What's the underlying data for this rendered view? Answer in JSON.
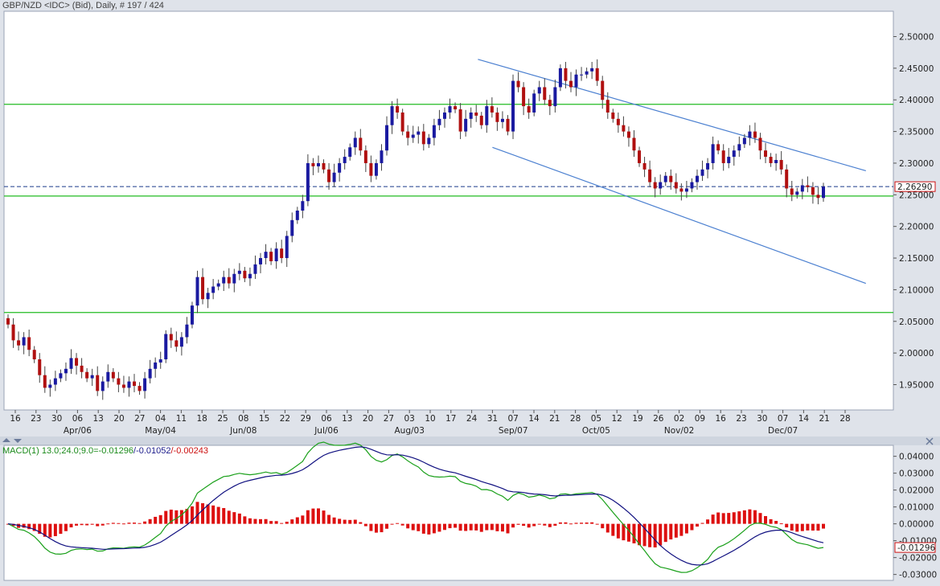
{
  "header": {
    "title": "GBP/NZD <IDC> (Bid), Daily, # 197 / 424"
  },
  "macd_panel": {
    "label_prefix": "MACD(1) 13.0;24.0;9.0=",
    "macd_value": "-0.01296",
    "signal_value": "/-0.01052",
    "hist_value": "/-0.00243"
  },
  "colors": {
    "up_candle": "#1a1aa0",
    "down_candle": "#b01010",
    "support_line": "#22bb22",
    "channel_line": "#4a7fd0",
    "macd_line": "#1aa01a",
    "signal_line": "#101080",
    "histogram": "#dd1010",
    "price_marker": "#cc1010"
  },
  "chart_data": [
    {
      "type": "candlestick",
      "title": "GBP/NZD <IDC> (Bid), Daily, # 197 / 424",
      "ylim": [
        1.91,
        2.54
      ],
      "y_ticks": [
        "2.50000",
        "2.45000",
        "2.40000",
        "2.35000",
        "2.30000",
        "2.25000",
        "2.20000",
        "2.15000",
        "2.10000",
        "2.05000",
        "2.00000",
        "1.95000"
      ],
      "y_tick_values": [
        2.5,
        2.45,
        2.4,
        2.35,
        2.3,
        2.25,
        2.2,
        2.15,
        2.1,
        2.05,
        2.0,
        1.95
      ],
      "x_tick_labels": [
        "16",
        "23",
        "30",
        "06",
        "13",
        "20",
        "27",
        "04",
        "11",
        "18",
        "25",
        "08",
        "15",
        "22",
        "29",
        "06",
        "13",
        "20",
        "27",
        "03",
        "10",
        "17",
        "24",
        "31",
        "07",
        "14",
        "21",
        "28",
        "05",
        "12",
        "19",
        "26",
        "02",
        "09",
        "16",
        "23",
        "30",
        "07",
        "14",
        "21",
        "28"
      ],
      "month_labels": [
        {
          "label": "Apr/06",
          "x_tick": 3
        },
        {
          "label": "May/04",
          "x_tick": 7
        },
        {
          "label": "Jun/08",
          "x_tick": 11
        },
        {
          "label": "Jul/06",
          "x_tick": 15
        },
        {
          "label": "Aug/03",
          "x_tick": 19
        },
        {
          "label": "Sep/07",
          "x_tick": 24
        },
        {
          "label": "Oct/05",
          "x_tick": 28
        },
        {
          "label": "Nov/02",
          "x_tick": 32
        },
        {
          "label": "Dec/07",
          "x_tick": 37
        }
      ],
      "current_price": "2.26290",
      "current_price_value": 2.2629,
      "horizontal_levels": [
        2.393,
        2.248,
        2.064
      ],
      "trend_lines": [
        {
          "from": [
            22.3,
            2.464
          ],
          "to": [
            41,
            2.288
          ]
        },
        {
          "from": [
            23,
            2.325
          ],
          "to": [
            41,
            2.11
          ]
        }
      ],
      "closes": [
        2.045,
        2.02,
        2.012,
        2.025,
        2.005,
        1.99,
        1.965,
        1.945,
        1.95,
        1.96,
        1.968,
        1.975,
        1.992,
        1.98,
        1.97,
        1.96,
        1.965,
        1.94,
        1.955,
        1.97,
        1.96,
        1.95,
        1.945,
        1.955,
        1.948,
        1.94,
        1.96,
        1.975,
        1.985,
        1.99,
        2.03,
        2.02,
        2.01,
        2.025,
        2.045,
        2.075,
        2.12,
        2.085,
        2.095,
        2.105,
        2.11,
        2.12,
        2.11,
        2.125,
        2.13,
        2.118,
        2.125,
        2.14,
        2.15,
        2.16,
        2.145,
        2.165,
        2.15,
        2.185,
        2.21,
        2.225,
        2.24,
        2.3,
        2.295,
        2.3,
        2.29,
        2.27,
        2.285,
        2.3,
        2.31,
        2.325,
        2.34,
        2.32,
        2.3,
        2.28,
        2.3,
        2.32,
        2.36,
        2.39,
        2.38,
        2.35,
        2.34,
        2.345,
        2.35,
        2.33,
        2.34,
        2.36,
        2.37,
        2.38,
        2.39,
        2.385,
        2.35,
        2.37,
        2.38,
        2.375,
        2.36,
        2.39,
        2.38,
        2.365,
        2.37,
        2.35,
        2.43,
        2.42,
        2.39,
        2.38,
        2.41,
        2.42,
        2.4,
        2.39,
        2.42,
        2.45,
        2.43,
        2.42,
        2.44,
        2.44,
        2.445,
        2.45,
        2.43,
        2.4,
        2.38,
        2.37,
        2.36,
        2.35,
        2.34,
        2.32,
        2.3,
        2.29,
        2.27,
        2.26,
        2.27,
        2.28,
        2.27,
        2.26,
        2.255,
        2.26,
        2.27,
        2.28,
        2.29,
        2.3,
        2.33,
        2.32,
        2.3,
        2.31,
        2.32,
        2.33,
        2.34,
        2.35,
        2.34,
        2.32,
        2.31,
        2.3,
        2.305,
        2.29,
        2.26,
        2.25,
        2.255,
        2.265,
        2.262,
        2.25,
        2.245,
        2.2629
      ]
    },
    {
      "type": "macd",
      "parameters": "13.0;24.0;9.0",
      "ylim": [
        -0.0335,
        0.0465
      ],
      "y_ticks": [
        "0.04000",
        "0.03000",
        "0.02000",
        "0.01000",
        "0.00000",
        "-0.01000",
        "-0.02000",
        "-0.03000"
      ],
      "y_tick_values": [
        0.04,
        0.03,
        0.02,
        0.01,
        0.0,
        -0.01,
        -0.02,
        -0.03
      ],
      "current_macd": "-0.01296",
      "series": [
        {
          "name": "MACD",
          "values": []
        },
        {
          "name": "Signal",
          "values": []
        },
        {
          "name": "Histogram",
          "values": []
        }
      ]
    }
  ]
}
